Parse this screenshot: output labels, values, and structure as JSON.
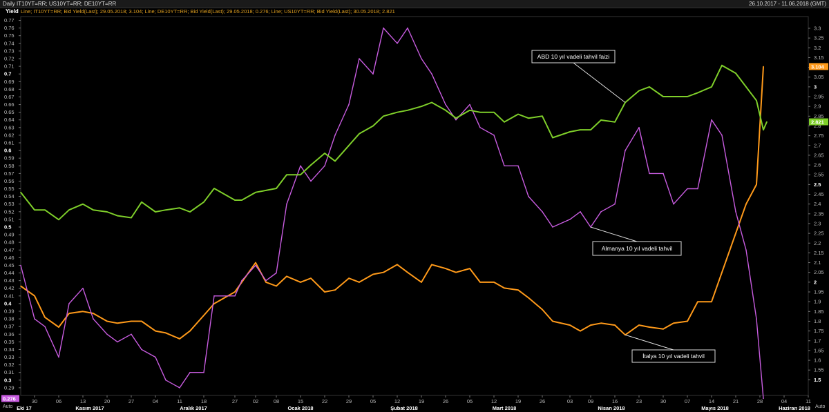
{
  "header": {
    "title": "Daily IT10YT=RR; US10YT=RR; DE10YT=RR",
    "date_range": "26.10.2017 - 11.06.2018 (GMT)"
  },
  "legend_text": "Line; IT10YT=RR; Bid Yield(Last); 29.05.2018; 3.104; Line; DE10YT=RR; Bid Yield(Last); 29.05.2018; 0.276; Line; US10YT=RR; Bid Yield(Last); 30.05.2018; 2.821",
  "yield_label": "Yield",
  "auto_left": "Auto",
  "auto_right": "Auto",
  "colors": {
    "italy": "#ff9a1a",
    "germany": "#c85ce0",
    "usa": "#7fcf2a",
    "background": "#000000",
    "grid": "#2e2e2e"
  },
  "chart_data": {
    "type": "line",
    "title": "",
    "left_axis": {
      "label": "Yield",
      "range": [
        0.28,
        0.775
      ],
      "ticks": [
        "0.29",
        "0.3",
        "0.31",
        "0.32",
        "0.33",
        "0.34",
        "0.35",
        "0.36",
        "0.37",
        "0.38",
        "0.39",
        "0.4",
        "0.41",
        "0.42",
        "0.43",
        "0.44",
        "0.45",
        "0.46",
        "0.47",
        "0.48",
        "0.49",
        "0.5",
        "0.51",
        "0.52",
        "0.53",
        "0.54",
        "0.55",
        "0.56",
        "0.57",
        "0.58",
        "0.59",
        "0.6",
        "0.61",
        "0.62",
        "0.63",
        "0.64",
        "0.65",
        "0.66",
        "0.67",
        "0.68",
        "0.69",
        "0.7",
        "0.71",
        "0.72",
        "0.73",
        "0.74",
        "0.75",
        "0.76",
        "0.77"
      ],
      "bold_ticks": [
        "0.3",
        "0.4",
        "0.5",
        "0.6",
        "0.7"
      ],
      "current_value": "0.276"
    },
    "right_axis": {
      "range": [
        1.42,
        3.36
      ],
      "ticks": [
        "1.5",
        "1.55",
        "1.6",
        "1.65",
        "1.7",
        "1.75",
        "1.8",
        "1.85",
        "1.9",
        "1.95",
        "2",
        "2.05",
        "2.1",
        "2.15",
        "2.2",
        "2.25",
        "2.3",
        "2.35",
        "2.4",
        "2.45",
        "2.5",
        "2.55",
        "2.6",
        "2.65",
        "2.7",
        "2.75",
        "2.8",
        "2.85",
        "2.9",
        "2.95",
        "3",
        "3.05",
        "3.1",
        "3.15",
        "3.2",
        "3.25",
        "3.3"
      ],
      "bold_ticks": [
        "1.5",
        "2",
        "2.5",
        "3"
      ],
      "current_values": [
        "3.104",
        "2.821"
      ]
    },
    "x_axis": {
      "range": [
        "2017-10-26",
        "2018-06-11"
      ],
      "day_ticks": [
        {
          "date": "2017-10-30",
          "label": "30"
        },
        {
          "date": "2017-11-06",
          "label": "06"
        },
        {
          "date": "2017-11-13",
          "label": "13"
        },
        {
          "date": "2017-11-20",
          "label": "20"
        },
        {
          "date": "2017-11-27",
          "label": "27"
        },
        {
          "date": "2017-12-04",
          "label": "04"
        },
        {
          "date": "2017-12-11",
          "label": "11"
        },
        {
          "date": "2017-12-18",
          "label": "18"
        },
        {
          "date": "2017-12-27",
          "label": "27"
        },
        {
          "date": "2018-01-02",
          "label": "02"
        },
        {
          "date": "2018-01-08",
          "label": "08"
        },
        {
          "date": "2018-01-15",
          "label": "15"
        },
        {
          "date": "2018-01-22",
          "label": "22"
        },
        {
          "date": "2018-01-29",
          "label": "29"
        },
        {
          "date": "2018-02-05",
          "label": "05"
        },
        {
          "date": "2018-02-12",
          "label": "12"
        },
        {
          "date": "2018-02-19",
          "label": "19"
        },
        {
          "date": "2018-02-26",
          "label": "26"
        },
        {
          "date": "2018-03-05",
          "label": "05"
        },
        {
          "date": "2018-03-12",
          "label": "12"
        },
        {
          "date": "2018-03-19",
          "label": "19"
        },
        {
          "date": "2018-03-26",
          "label": "26"
        },
        {
          "date": "2018-04-03",
          "label": "03"
        },
        {
          "date": "2018-04-09",
          "label": "09"
        },
        {
          "date": "2018-04-16",
          "label": "16"
        },
        {
          "date": "2018-04-23",
          "label": "23"
        },
        {
          "date": "2018-04-30",
          "label": "30"
        },
        {
          "date": "2018-05-07",
          "label": "07"
        },
        {
          "date": "2018-05-14",
          "label": "14"
        },
        {
          "date": "2018-05-21",
          "label": "21"
        },
        {
          "date": "2018-05-28",
          "label": "28"
        },
        {
          "date": "2018-06-04",
          "label": "04"
        },
        {
          "date": "2018-06-11",
          "label": "11"
        }
      ],
      "month_labels": [
        {
          "date": "2017-10-27",
          "label": "Eki 17"
        },
        {
          "date": "2017-11-15",
          "label": "Kasım 2017"
        },
        {
          "date": "2017-12-15",
          "label": "Aralık 2017"
        },
        {
          "date": "2018-01-15",
          "label": "Ocak 2018"
        },
        {
          "date": "2018-02-14",
          "label": "Şubat 2018"
        },
        {
          "date": "2018-03-15",
          "label": "Mart 2018"
        },
        {
          "date": "2018-04-15",
          "label": "Nisan 2018"
        },
        {
          "date": "2018-05-15",
          "label": "Mayıs 2018"
        },
        {
          "date": "2018-06-07",
          "label": "Haziran 2018"
        }
      ]
    },
    "series": [
      {
        "name": "İtalya 10 yıl vadeli tahvil",
        "axis": "right",
        "color": "#ff9a1a",
        "points": [
          [
            "2017-10-26",
            1.98
          ],
          [
            "2017-10-30",
            1.93
          ],
          [
            "2017-11-02",
            1.82
          ],
          [
            "2017-11-06",
            1.77
          ],
          [
            "2017-11-09",
            1.84
          ],
          [
            "2017-11-13",
            1.85
          ],
          [
            "2017-11-16",
            1.84
          ],
          [
            "2017-11-20",
            1.8
          ],
          [
            "2017-11-23",
            1.79
          ],
          [
            "2017-11-27",
            1.8
          ],
          [
            "2017-11-30",
            1.8
          ],
          [
            "2017-12-04",
            1.75
          ],
          [
            "2017-12-07",
            1.74
          ],
          [
            "2017-12-11",
            1.71
          ],
          [
            "2017-12-14",
            1.75
          ],
          [
            "2017-12-18",
            1.83
          ],
          [
            "2017-12-21",
            1.89
          ],
          [
            "2017-12-27",
            1.95
          ],
          [
            "2017-12-29",
            2.0
          ],
          [
            "2018-01-02",
            2.1
          ],
          [
            "2018-01-05",
            2.0
          ],
          [
            "2018-01-08",
            1.98
          ],
          [
            "2018-01-11",
            2.03
          ],
          [
            "2018-01-15",
            2.0
          ],
          [
            "2018-01-18",
            2.02
          ],
          [
            "2018-01-22",
            1.95
          ],
          [
            "2018-01-25",
            1.96
          ],
          [
            "2018-01-29",
            2.02
          ],
          [
            "2018-02-01",
            2.0
          ],
          [
            "2018-02-05",
            2.04
          ],
          [
            "2018-02-08",
            2.05
          ],
          [
            "2018-02-12",
            2.09
          ],
          [
            "2018-02-15",
            2.05
          ],
          [
            "2018-02-19",
            2.0
          ],
          [
            "2018-02-22",
            2.09
          ],
          [
            "2018-02-26",
            2.07
          ],
          [
            "2018-03-01",
            2.05
          ],
          [
            "2018-03-05",
            2.07
          ],
          [
            "2018-03-08",
            2.0
          ],
          [
            "2018-03-12",
            2.0
          ],
          [
            "2018-03-15",
            1.97
          ],
          [
            "2018-03-19",
            1.96
          ],
          [
            "2018-03-22",
            1.92
          ],
          [
            "2018-03-26",
            1.86
          ],
          [
            "2018-03-29",
            1.8
          ],
          [
            "2018-04-03",
            1.78
          ],
          [
            "2018-04-06",
            1.75
          ],
          [
            "2018-04-09",
            1.78
          ],
          [
            "2018-04-12",
            1.79
          ],
          [
            "2018-04-16",
            1.78
          ],
          [
            "2018-04-19",
            1.73
          ],
          [
            "2018-04-23",
            1.78
          ],
          [
            "2018-04-26",
            1.77
          ],
          [
            "2018-04-30",
            1.76
          ],
          [
            "2018-05-03",
            1.79
          ],
          [
            "2018-05-07",
            1.8
          ],
          [
            "2018-05-10",
            1.9
          ],
          [
            "2018-05-14",
            1.9
          ],
          [
            "2018-05-17",
            2.05
          ],
          [
            "2018-05-21",
            2.25
          ],
          [
            "2018-05-24",
            2.4
          ],
          [
            "2018-05-27",
            2.5
          ],
          [
            "2018-05-29",
            3.104
          ]
        ]
      },
      {
        "name": "Almanya 10 yıl vadeli tahvil",
        "axis": "left",
        "color": "#c85ce0",
        "points": [
          [
            "2017-10-26",
            0.45
          ],
          [
            "2017-10-30",
            0.38
          ],
          [
            "2017-11-02",
            0.37
          ],
          [
            "2017-11-06",
            0.33
          ],
          [
            "2017-11-09",
            0.4
          ],
          [
            "2017-11-13",
            0.42
          ],
          [
            "2017-11-16",
            0.38
          ],
          [
            "2017-11-20",
            0.36
          ],
          [
            "2017-11-23",
            0.35
          ],
          [
            "2017-11-27",
            0.36
          ],
          [
            "2017-11-30",
            0.34
          ],
          [
            "2017-12-04",
            0.33
          ],
          [
            "2017-12-07",
            0.3
          ],
          [
            "2017-12-11",
            0.29
          ],
          [
            "2017-12-14",
            0.31
          ],
          [
            "2017-12-18",
            0.31
          ],
          [
            "2017-12-21",
            0.41
          ],
          [
            "2017-12-27",
            0.41
          ],
          [
            "2017-12-29",
            0.43
          ],
          [
            "2018-01-02",
            0.45
          ],
          [
            "2018-01-05",
            0.43
          ],
          [
            "2018-01-08",
            0.44
          ],
          [
            "2018-01-11",
            0.53
          ],
          [
            "2018-01-15",
            0.58
          ],
          [
            "2018-01-18",
            0.56
          ],
          [
            "2018-01-22",
            0.58
          ],
          [
            "2018-01-25",
            0.62
          ],
          [
            "2018-01-29",
            0.66
          ],
          [
            "2018-02-01",
            0.72
          ],
          [
            "2018-02-05",
            0.7
          ],
          [
            "2018-02-08",
            0.76
          ],
          [
            "2018-02-12",
            0.74
          ],
          [
            "2018-02-15",
            0.76
          ],
          [
            "2018-02-19",
            0.72
          ],
          [
            "2018-02-22",
            0.7
          ],
          [
            "2018-02-26",
            0.66
          ],
          [
            "2018-03-01",
            0.64
          ],
          [
            "2018-03-05",
            0.66
          ],
          [
            "2018-03-08",
            0.63
          ],
          [
            "2018-03-12",
            0.62
          ],
          [
            "2018-03-15",
            0.58
          ],
          [
            "2018-03-19",
            0.58
          ],
          [
            "2018-03-22",
            0.54
          ],
          [
            "2018-03-26",
            0.52
          ],
          [
            "2018-03-29",
            0.5
          ],
          [
            "2018-04-03",
            0.51
          ],
          [
            "2018-04-06",
            0.52
          ],
          [
            "2018-04-09",
            0.5
          ],
          [
            "2018-04-12",
            0.52
          ],
          [
            "2018-04-16",
            0.53
          ],
          [
            "2018-04-19",
            0.6
          ],
          [
            "2018-04-23",
            0.63
          ],
          [
            "2018-04-26",
            0.57
          ],
          [
            "2018-04-30",
            0.57
          ],
          [
            "2018-05-03",
            0.53
          ],
          [
            "2018-05-07",
            0.55
          ],
          [
            "2018-05-10",
            0.55
          ],
          [
            "2018-05-14",
            0.64
          ],
          [
            "2018-05-17",
            0.62
          ],
          [
            "2018-05-21",
            0.52
          ],
          [
            "2018-05-24",
            0.47
          ],
          [
            "2018-05-27",
            0.38
          ],
          [
            "2018-05-29",
            0.276
          ]
        ]
      },
      {
        "name": "ABD 10 yıl vadeli tahvil faizi",
        "axis": "right",
        "color": "#7fcf2a",
        "points": [
          [
            "2017-10-26",
            2.46
          ],
          [
            "2017-10-30",
            2.37
          ],
          [
            "2017-11-02",
            2.37
          ],
          [
            "2017-11-06",
            2.32
          ],
          [
            "2017-11-09",
            2.37
          ],
          [
            "2017-11-13",
            2.4
          ],
          [
            "2017-11-16",
            2.37
          ],
          [
            "2017-11-20",
            2.36
          ],
          [
            "2017-11-23",
            2.34
          ],
          [
            "2017-11-27",
            2.33
          ],
          [
            "2017-11-30",
            2.41
          ],
          [
            "2017-12-04",
            2.36
          ],
          [
            "2017-12-07",
            2.37
          ],
          [
            "2017-12-11",
            2.38
          ],
          [
            "2017-12-14",
            2.36
          ],
          [
            "2017-12-18",
            2.41
          ],
          [
            "2017-12-21",
            2.48
          ],
          [
            "2017-12-27",
            2.42
          ],
          [
            "2017-12-29",
            2.42
          ],
          [
            "2018-01-02",
            2.46
          ],
          [
            "2018-01-05",
            2.47
          ],
          [
            "2018-01-08",
            2.48
          ],
          [
            "2018-01-11",
            2.55
          ],
          [
            "2018-01-15",
            2.55
          ],
          [
            "2018-01-18",
            2.6
          ],
          [
            "2018-01-22",
            2.66
          ],
          [
            "2018-01-25",
            2.62
          ],
          [
            "2018-01-29",
            2.7
          ],
          [
            "2018-02-01",
            2.76
          ],
          [
            "2018-02-05",
            2.8
          ],
          [
            "2018-02-08",
            2.85
          ],
          [
            "2018-02-12",
            2.87
          ],
          [
            "2018-02-15",
            2.88
          ],
          [
            "2018-02-19",
            2.9
          ],
          [
            "2018-02-22",
            2.92
          ],
          [
            "2018-02-26",
            2.88
          ],
          [
            "2018-03-01",
            2.84
          ],
          [
            "2018-03-05",
            2.88
          ],
          [
            "2018-03-08",
            2.87
          ],
          [
            "2018-03-12",
            2.87
          ],
          [
            "2018-03-15",
            2.82
          ],
          [
            "2018-03-19",
            2.86
          ],
          [
            "2018-03-22",
            2.84
          ],
          [
            "2018-03-26",
            2.85
          ],
          [
            "2018-03-29",
            2.74
          ],
          [
            "2018-04-03",
            2.77
          ],
          [
            "2018-04-06",
            2.78
          ],
          [
            "2018-04-09",
            2.78
          ],
          [
            "2018-04-12",
            2.83
          ],
          [
            "2018-04-16",
            2.82
          ],
          [
            "2018-04-19",
            2.92
          ],
          [
            "2018-04-23",
            2.98
          ],
          [
            "2018-04-26",
            3.0
          ],
          [
            "2018-04-30",
            2.95
          ],
          [
            "2018-05-03",
            2.95
          ],
          [
            "2018-05-07",
            2.95
          ],
          [
            "2018-05-10",
            2.97
          ],
          [
            "2018-05-14",
            3.0
          ],
          [
            "2018-05-17",
            3.11
          ],
          [
            "2018-05-21",
            3.07
          ],
          [
            "2018-05-24",
            3.0
          ],
          [
            "2018-05-27",
            2.93
          ],
          [
            "2018-05-29",
            2.78
          ],
          [
            "2018-05-30",
            2.821
          ]
        ]
      }
    ],
    "annotations": [
      {
        "text": "ABD 10 yıl vadeli tahvil faizi",
        "series": "ABD 10 yıl vadeli tahvil faizi"
      },
      {
        "text": "Almanya 10 yıl vadeli tahvil",
        "series": "Almanya 10 yıl vadeli tahvil"
      },
      {
        "text": "İtalya 10 yıl vadeli tahvil",
        "series": "İtalya 10 yıl vadeli tahvil"
      }
    ],
    "grid": false
  }
}
